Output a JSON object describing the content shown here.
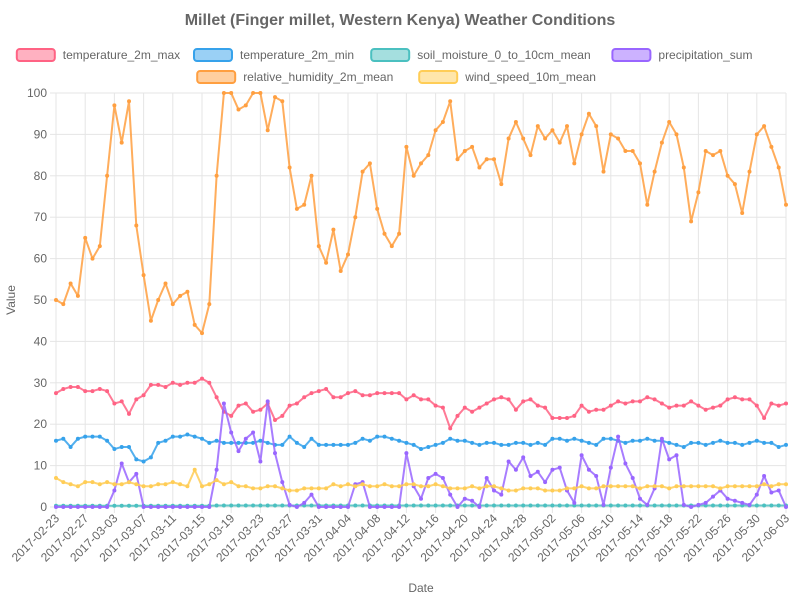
{
  "chart_data": {
    "type": "line",
    "title": "Millet (Finger millet, Western Kenya) Weather Conditions",
    "xlabel": "Date",
    "ylabel": "Value",
    "ylim": [
      0,
      100
    ],
    "y_ticks": [
      0,
      10,
      20,
      30,
      40,
      50,
      60,
      70,
      80,
      90,
      100
    ],
    "grid": true,
    "legend_position": "top",
    "x": [
      "2017-02-23",
      "2017-02-24",
      "2017-02-25",
      "2017-02-26",
      "2017-02-27",
      "2017-02-28",
      "2017-03-01",
      "2017-03-02",
      "2017-03-03",
      "2017-03-04",
      "2017-03-05",
      "2017-03-06",
      "2017-03-07",
      "2017-03-08",
      "2017-03-09",
      "2017-03-10",
      "2017-03-11",
      "2017-03-12",
      "2017-03-13",
      "2017-03-14",
      "2017-03-15",
      "2017-03-16",
      "2017-03-17",
      "2017-03-18",
      "2017-03-19",
      "2017-03-20",
      "2017-03-21",
      "2017-03-22",
      "2017-03-23",
      "2017-03-24",
      "2017-03-25",
      "2017-03-26",
      "2017-03-27",
      "2017-03-28",
      "2017-03-29",
      "2017-03-30",
      "2017-03-31",
      "2017-04-01",
      "2017-04-02",
      "2017-04-03",
      "2017-04-04",
      "2017-04-05",
      "2017-04-06",
      "2017-04-07",
      "2017-04-08",
      "2017-04-09",
      "2017-04-10",
      "2017-04-11",
      "2017-04-12",
      "2017-04-13",
      "2017-04-14",
      "2017-04-15",
      "2017-04-16",
      "2017-04-17",
      "2017-04-18",
      "2017-04-19",
      "2017-04-20",
      "2017-04-21",
      "2017-04-22",
      "2017-04-23",
      "2017-04-24",
      "2017-04-25",
      "2017-04-26",
      "2017-04-27",
      "2017-04-28",
      "2017-04-29",
      "2017-04-30",
      "2017-05-01",
      "2017-05-02",
      "2017-05-03",
      "2017-05-04",
      "2017-05-05",
      "2017-05-06",
      "2017-05-07",
      "2017-05-08",
      "2017-05-09",
      "2017-05-10",
      "2017-05-11",
      "2017-05-12",
      "2017-05-13",
      "2017-05-14",
      "2017-05-15",
      "2017-05-16",
      "2017-05-17",
      "2017-05-18",
      "2017-05-19",
      "2017-05-20",
      "2017-05-21",
      "2017-05-22",
      "2017-05-23",
      "2017-05-24",
      "2017-05-25",
      "2017-05-26",
      "2017-05-27",
      "2017-05-28",
      "2017-05-29",
      "2017-05-30",
      "2017-05-31",
      "2017-06-01",
      "2017-06-02",
      "2017-06-03"
    ],
    "x_tick_labels": [
      "2017-02-23",
      "2017-02-27",
      "2017-03-03",
      "2017-03-07",
      "2017-03-11",
      "2017-03-15",
      "2017-03-19",
      "2017-03-23",
      "2017-03-27",
      "2017-03-31",
      "2017-04-04",
      "2017-04-08",
      "2017-04-12",
      "2017-04-16",
      "2017-04-20",
      "2017-04-24",
      "2017-04-28",
      "2017-05-02",
      "2017-05-06",
      "2017-05-10",
      "2017-05-14",
      "2017-05-18",
      "2017-05-22",
      "2017-05-26",
      "2017-05-30",
      "2017-06-03"
    ],
    "series": [
      {
        "name": "temperature_2m_max",
        "color": "#ff6384",
        "values": [
          27.5,
          28.5,
          29,
          29,
          28,
          28,
          28.5,
          28,
          25,
          25.5,
          22.5,
          26,
          27,
          29.5,
          29.5,
          29,
          30,
          29.5,
          30,
          30,
          31,
          30,
          26.5,
          23,
          22,
          24.5,
          25,
          23,
          23.5,
          25,
          21,
          22,
          24.5,
          25,
          26.5,
          27.5,
          28,
          28.5,
          26.5,
          26.5,
          27.5,
          28,
          27,
          27,
          27.5,
          27.5,
          27.5,
          27.5,
          26,
          27,
          26,
          26,
          24.5,
          24,
          19,
          22,
          24,
          23,
          24,
          25,
          26,
          26.5,
          26,
          23.5,
          25.5,
          26,
          24.5,
          24,
          21.5,
          21.5,
          21.5,
          22,
          24.5,
          23,
          23.5,
          23.5,
          24.5,
          25.5,
          25,
          25.5,
          25.5,
          26.5,
          26,
          25,
          24,
          24.5,
          24.5,
          25.5,
          24.5,
          23.5,
          24,
          24.5,
          26,
          26.5,
          26,
          26,
          24.5,
          21.5,
          25,
          24.5,
          25
        ]
      },
      {
        "name": "temperature_2m_min",
        "color": "#36a2eb",
        "values": [
          16,
          16.5,
          14.5,
          16.5,
          17,
          17,
          17,
          16,
          14,
          14.5,
          14.5,
          11.5,
          11,
          12,
          15.5,
          16,
          17,
          17,
          17.5,
          17,
          16.5,
          15.5,
          16,
          15.5,
          15.5,
          15.5,
          15.5,
          15.5,
          16,
          15.5,
          15,
          15,
          17,
          15.5,
          14.5,
          16.5,
          15,
          15,
          15,
          15,
          15,
          15.5,
          16.5,
          16,
          17,
          17,
          16.5,
          16,
          15.5,
          15,
          14,
          14.5,
          15,
          15.5,
          16.5,
          16,
          16,
          15.5,
          15,
          15.5,
          15.5,
          15,
          15,
          15.5,
          15.5,
          15,
          15.5,
          15,
          16.5,
          16.5,
          16,
          16.5,
          16,
          15.5,
          15,
          16.5,
          16.5,
          16,
          15.5,
          16,
          16,
          16.5,
          16,
          16,
          15.5,
          15,
          14.5,
          15.5,
          15.5,
          15,
          15.5,
          16,
          15.5,
          15.5,
          15,
          15.5,
          16,
          15.5,
          15.5,
          14.5,
          15
        ]
      },
      {
        "name": "soil_moisture_0_to_10cm_mean",
        "color": "#4bc0c0",
        "values": [
          0.3,
          0.3,
          0.3,
          0.3,
          0.3,
          0.3,
          0.3,
          0.3,
          0.3,
          0.3,
          0.3,
          0.3,
          0.3,
          0.3,
          0.3,
          0.3,
          0.3,
          0.3,
          0.3,
          0.3,
          0.3,
          0.3,
          0.35,
          0.35,
          0.35,
          0.35,
          0.35,
          0.35,
          0.35,
          0.35,
          0.35,
          0.35,
          0.35,
          0.35,
          0.35,
          0.35,
          0.35,
          0.35,
          0.35,
          0.35,
          0.35,
          0.35,
          0.35,
          0.35,
          0.35,
          0.35,
          0.35,
          0.35,
          0.35,
          0.35,
          0.35,
          0.35,
          0.35,
          0.35,
          0.35,
          0.35,
          0.35,
          0.35,
          0.35,
          0.35,
          0.35,
          0.35,
          0.35,
          0.35,
          0.35,
          0.35,
          0.35,
          0.35,
          0.35,
          0.35,
          0.35,
          0.35,
          0.35,
          0.35,
          0.35,
          0.35,
          0.35,
          0.35,
          0.35,
          0.35,
          0.35,
          0.35,
          0.35,
          0.35,
          0.35,
          0.35,
          0.35,
          0.35,
          0.35,
          0.35,
          0.35,
          0.35,
          0.35,
          0.35,
          0.35,
          0.35,
          0.35,
          0.35,
          0.35,
          0.35,
          0.35
        ]
      },
      {
        "name": "precipitation_sum",
        "color": "#9966ff",
        "values": [
          0,
          0,
          0,
          0,
          0,
          0,
          0,
          0,
          4,
          10.5,
          6,
          8,
          0,
          0,
          0,
          0,
          0,
          0,
          0,
          0,
          0,
          0,
          9,
          25,
          18,
          13.5,
          16.5,
          18,
          11,
          25.5,
          13,
          6,
          0.5,
          0,
          1,
          3,
          0,
          0,
          0,
          0,
          0,
          5.5,
          6,
          0,
          0,
          0,
          0,
          0,
          13,
          5,
          2,
          7,
          8,
          7,
          3,
          0,
          2,
          1.5,
          0,
          7,
          4,
          3,
          11,
          9,
          12,
          7.5,
          8.5,
          6,
          9,
          9.5,
          4,
          1,
          12.5,
          9,
          7.5,
          0.5,
          9.5,
          17,
          10.5,
          7,
          2,
          0.5,
          4.5,
          16.5,
          11.5,
          12.5,
          0.5,
          0,
          0.5,
          1,
          2.5,
          4,
          2,
          1.5,
          1,
          0.5,
          3,
          7.5,
          3.5,
          4,
          0
        ]
      },
      {
        "name": "relative_humidity_2m_mean",
        "color": "#ff9f40",
        "values": [
          50,
          49,
          54,
          51,
          65,
          60,
          63,
          80,
          97,
          88,
          98,
          68,
          56,
          45,
          50,
          54,
          49,
          51,
          52,
          44,
          42,
          49,
          80,
          100,
          100,
          96,
          97,
          100,
          100,
          91,
          99,
          98,
          82,
          72,
          73,
          80,
          63,
          59,
          67,
          57,
          61,
          70,
          81,
          83,
          72,
          66,
          63,
          66,
          87,
          80,
          83,
          85,
          91,
          93,
          98,
          84,
          86,
          87,
          82,
          84,
          84,
          78,
          89,
          93,
          89,
          85,
          92,
          89,
          91,
          88,
          92,
          83,
          90,
          95,
          92,
          81,
          90,
          89,
          86,
          86,
          83,
          73,
          81,
          88,
          93,
          90,
          82,
          69,
          76,
          86,
          85,
          86,
          80,
          78,
          71,
          81,
          90,
          92,
          87,
          82,
          73
        ]
      },
      {
        "name": "wind_speed_10m_mean",
        "color": "#ffcd56",
        "values": [
          7,
          6,
          5.5,
          5,
          6,
          6,
          5.5,
          6,
          5.5,
          5.5,
          6,
          5.5,
          5,
          5,
          5.5,
          5.5,
          6,
          5.5,
          5,
          9,
          5,
          5.5,
          6.5,
          5.5,
          6,
          5,
          5,
          4.5,
          4.5,
          5,
          5,
          4.5,
          4,
          4,
          4.5,
          4.5,
          4.5,
          4.5,
          5.5,
          5,
          5.5,
          5,
          5.5,
          5,
          5,
          5.5,
          5,
          5,
          5.5,
          5.5,
          5,
          5,
          5.5,
          5,
          4.5,
          4.5,
          4.5,
          5,
          4.5,
          5,
          5,
          4.5,
          4,
          4,
          4.5,
          4.5,
          4.5,
          4,
          4,
          4,
          4.5,
          4.5,
          5,
          4.5,
          4.5,
          5,
          5,
          5,
          5,
          5,
          4.5,
          5,
          5,
          5,
          4.5,
          5,
          5,
          5,
          5,
          5,
          5,
          4.5,
          5,
          5,
          5,
          5,
          5,
          5.5,
          5,
          5.5,
          5.5
        ]
      }
    ]
  }
}
